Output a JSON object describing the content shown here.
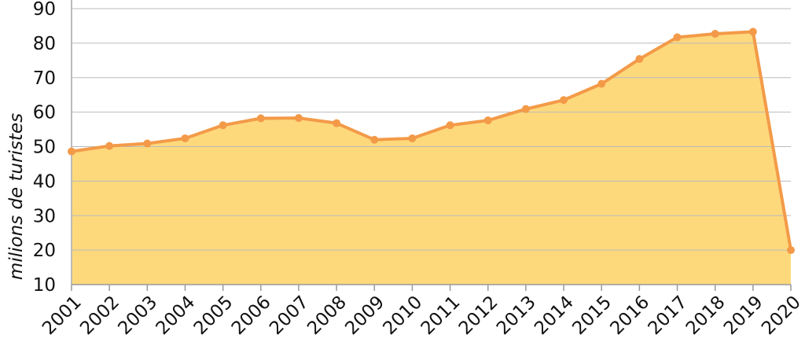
{
  "chart_data": {
    "type": "area",
    "y_label": "milions de turistes",
    "categories": [
      "2001",
      "2002",
      "2003",
      "2004",
      "2005",
      "2006",
      "2007",
      "2008",
      "2009",
      "2010",
      "2011",
      "2012",
      "2013",
      "2014",
      "2015",
      "2016",
      "2017",
      "2018",
      "2019",
      "2020"
    ],
    "values": [
      48.6,
      50.2,
      50.9,
      52.4,
      56.2,
      58.2,
      58.3,
      56.8,
      52.0,
      52.4,
      56.2,
      57.6,
      60.9,
      63.5,
      68.2,
      75.4,
      81.7,
      82.7,
      83.3,
      20.0
    ],
    "line_color": "#f39a48",
    "fill_color": "#fdd97c",
    "ylim": [
      10,
      90
    ],
    "yticks": [
      10,
      20,
      30,
      40,
      50,
      60,
      70,
      80,
      90
    ],
    "grid": true
  }
}
